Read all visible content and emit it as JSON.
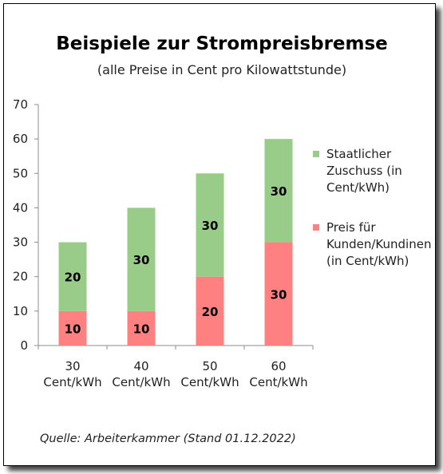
{
  "chart_data": {
    "type": "bar",
    "stacked": true,
    "title": "Beispiele zur Strompreisbremse",
    "subtitle": "(alle Preise in Cent pro Kilowattstunde)",
    "categories": [
      [
        "30",
        "Cent/kWh"
      ],
      [
        "40",
        "Cent/kWh"
      ],
      [
        "50",
        "Cent/kWh"
      ],
      [
        "60",
        "Cent/kWh"
      ]
    ],
    "series": [
      {
        "name": [
          "Preis für",
          "Kunden/Kundinen",
          "(in Cent/kWh)"
        ],
        "values": [
          10,
          10,
          20,
          30
        ],
        "color": "#ff8080"
      },
      {
        "name": [
          "Staatlicher",
          "Zuschuss (in",
          "Cent/kWh)"
        ],
        "values": [
          20,
          30,
          30,
          30
        ],
        "color": "#99cc88"
      }
    ],
    "ylim": [
      0,
      70
    ],
    "yticks": [
      0,
      10,
      20,
      30,
      40,
      50,
      60,
      70
    ],
    "grid": false,
    "legend": "right",
    "source": "Quelle: Arbeiterkammer (Stand 01.12.2022)"
  }
}
